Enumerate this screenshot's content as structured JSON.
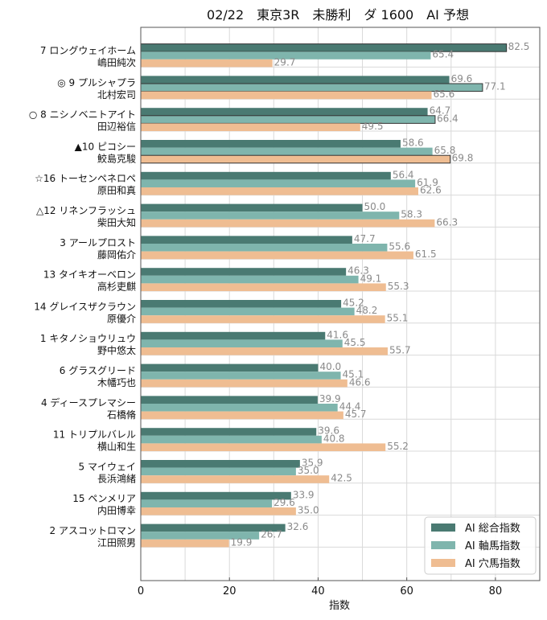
{
  "chart_data": {
    "type": "bar",
    "orientation": "horizontal",
    "title": "02/22　東京3R　未勝利　ダ 1600　AI 予想",
    "xlabel": "指数",
    "xlim": [
      0,
      90
    ],
    "xticks": [
      0,
      20,
      40,
      60,
      80
    ],
    "grid": true,
    "legend_position": "bottom-right",
    "categories": [
      {
        "horse": "7 ロングウェイホーム",
        "jockey": "嶋田純次"
      },
      {
        "horse": "◎ 9 プルシャプラ",
        "jockey": "北村宏司"
      },
      {
        "horse": "○ 8 ニシノベニトアイト",
        "jockey": "田辺裕信"
      },
      {
        "horse": "▲10 ピコシー",
        "jockey": "鮫島克駿"
      },
      {
        "horse": "☆16 トーセンペネロペ",
        "jockey": "原田和真"
      },
      {
        "horse": "△12 リネンフラッシュ",
        "jockey": "柴田大知"
      },
      {
        "horse": "3 アールプロスト",
        "jockey": "藤岡佑介"
      },
      {
        "horse": "13 タイキオーベロン",
        "jockey": "高杉吏麒"
      },
      {
        "horse": "14 グレイスザクラウン",
        "jockey": "原優介"
      },
      {
        "horse": "1 キタノショウリュウ",
        "jockey": "野中悠太"
      },
      {
        "horse": "6 グラスグリード",
        "jockey": "木幡巧也"
      },
      {
        "horse": "4 ディースプレマシー",
        "jockey": "石橋脩"
      },
      {
        "horse": "11 トリプルバレル",
        "jockey": "横山和生"
      },
      {
        "horse": "5 マイウェイ",
        "jockey": "長浜鴻緒"
      },
      {
        "horse": "15 ペンメリア",
        "jockey": "内田博幸"
      },
      {
        "horse": "2 アスコットロマン",
        "jockey": "江田照男"
      }
    ],
    "series": [
      {
        "name": "AI 総合指数",
        "color": "#4a7a72",
        "values": [
          82.5,
          69.6,
          64.7,
          58.6,
          56.4,
          50.0,
          47.7,
          46.3,
          45.2,
          41.6,
          40.0,
          39.9,
          39.6,
          35.9,
          33.9,
          32.6
        ],
        "labels": [
          "82.5",
          "69.6",
          "64.7",
          "58.6",
          "56.4",
          "50.0",
          "47.7",
          "46.3",
          "45.2",
          "41.6",
          "40.0",
          "39.9",
          "39.6",
          "35.9",
          "33.9",
          "32.6"
        ]
      },
      {
        "name": "AI 軸馬指数",
        "color": "#7fb5ad",
        "values": [
          65.4,
          77.1,
          66.4,
          65.8,
          61.9,
          58.3,
          55.6,
          49.1,
          48.2,
          45.5,
          45.1,
          44.4,
          40.8,
          35.0,
          29.6,
          26.7
        ],
        "labels": [
          "65.4",
          "77.1",
          "66.4",
          "65.8",
          "61.9",
          "58.3",
          "55.6",
          "49.1",
          "48.2",
          "45.5",
          "45.1",
          "44.4",
          "40.8",
          "35.0",
          "29.6",
          "26.7"
        ]
      },
      {
        "name": "AI 穴馬指数",
        "color": "#efbd92",
        "values": [
          29.7,
          65.6,
          49.5,
          69.8,
          62.6,
          66.3,
          61.5,
          55.3,
          55.1,
          55.7,
          46.6,
          45.7,
          55.2,
          42.5,
          35.0,
          19.9
        ],
        "labels": [
          "29.7",
          "65.6",
          "49.5",
          "69.8",
          "62.6",
          "66.3",
          "61.5",
          "55.3",
          "55.1",
          "55.7",
          "46.6",
          "45.7",
          "55.2",
          "42.5",
          "35.0",
          "19.9"
        ]
      }
    ],
    "highlight": {
      "AI 総合指数": [
        0
      ],
      "AI 軸馬指数": [
        1,
        2
      ],
      "AI 穴馬指数": [
        3
      ]
    }
  }
}
